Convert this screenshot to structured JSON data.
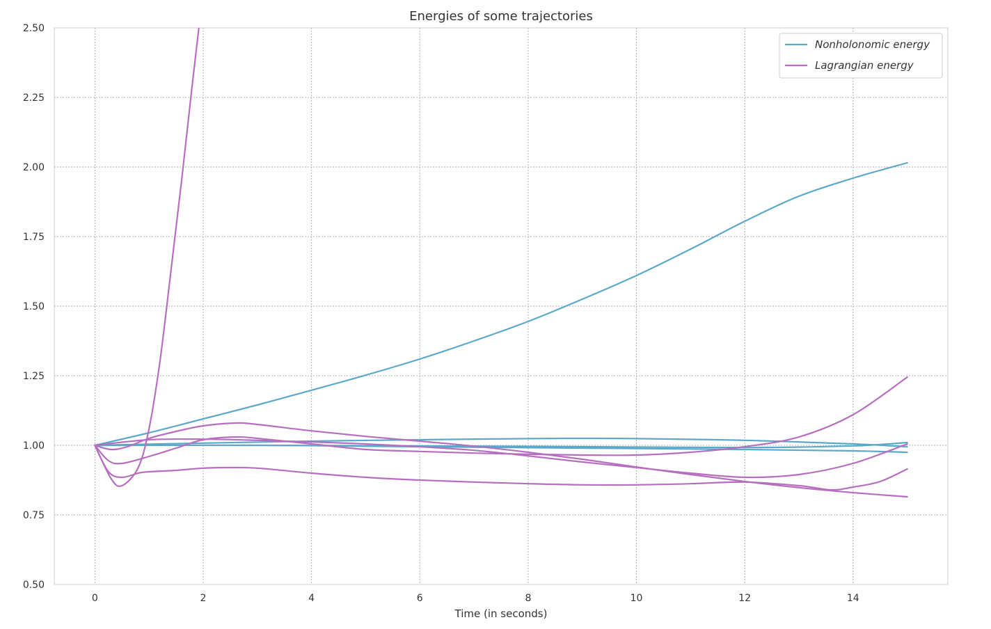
{
  "chart_data": {
    "type": "line",
    "title": "Energies of some trajectories",
    "xlabel": "Time (in seconds)",
    "ylabel": "",
    "xlim": [
      -0.75,
      15.75
    ],
    "ylim": [
      0.5,
      2.5
    ],
    "x_ticks": [
      0,
      2,
      4,
      6,
      8,
      10,
      12,
      14
    ],
    "x_tick_labels": [
      "0",
      "2",
      "4",
      "6",
      "8",
      "10",
      "12",
      "14"
    ],
    "y_ticks": [
      0.5,
      0.75,
      1.0,
      1.25,
      1.5,
      1.75,
      2.0,
      2.25,
      2.5
    ],
    "y_tick_labels": [
      "0.50",
      "0.75",
      "1.00",
      "1.25",
      "1.50",
      "1.75",
      "2.00",
      "2.25",
      "2.50"
    ],
    "grid": true,
    "legend_position": "top-right",
    "legend": [
      {
        "label": "Nonholonomic energy",
        "color": "#5ba8c8"
      },
      {
        "label": "Lagrangian energy",
        "color": "#b56fbe"
      }
    ],
    "series": [
      {
        "group": "nonholonomic",
        "color": "#5ba8c8",
        "x": [
          0,
          1,
          2,
          3,
          4,
          5,
          6,
          7,
          8,
          9,
          10,
          11,
          12,
          13,
          14,
          15
        ],
        "y": [
          1.0,
          1.045,
          1.095,
          1.145,
          1.198,
          1.252,
          1.31,
          1.375,
          1.445,
          1.525,
          1.61,
          1.705,
          1.805,
          1.895,
          1.96,
          2.015
        ]
      },
      {
        "group": "nonholonomic",
        "color": "#5ba8c8",
        "x": [
          0,
          2,
          4,
          6,
          8,
          9,
          10,
          12,
          14,
          15
        ],
        "y": [
          1.0,
          1.008,
          1.015,
          1.02,
          1.024,
          1.025,
          1.024,
          1.018,
          1.005,
          0.995
        ]
      },
      {
        "group": "nonholonomic",
        "color": "#5ba8c8",
        "x": [
          0,
          3,
          6,
          9,
          12,
          14,
          15
        ],
        "y": [
          1.0,
          1.0,
          0.998,
          0.995,
          0.992,
          0.998,
          1.01
        ]
      },
      {
        "group": "nonholonomic",
        "color": "#5ba8c8",
        "x": [
          0,
          3,
          6,
          9,
          12,
          14,
          15
        ],
        "y": [
          1.0,
          1.0,
          0.995,
          0.99,
          0.985,
          0.98,
          0.975
        ]
      },
      {
        "group": "lagrangian",
        "color": "#b56fbe",
        "x": [
          0,
          0.3,
          0.5,
          0.8,
          1.0,
          1.2,
          1.4,
          1.6,
          1.8,
          1.92
        ],
        "y": [
          1.0,
          0.88,
          0.855,
          0.92,
          1.06,
          1.3,
          1.62,
          1.95,
          2.3,
          2.5
        ]
      },
      {
        "group": "lagrangian",
        "color": "#b56fbe",
        "x": [
          0,
          0.25,
          0.5,
          0.8,
          1.0,
          1.5,
          2.0,
          2.5,
          3.0,
          4.0,
          5.0,
          6.0,
          7.0,
          8.0,
          9.0,
          10.0,
          11.0,
          12.0,
          13.0,
          13.6,
          14.0,
          14.5,
          15.0
        ],
        "y": [
          1.0,
          0.905,
          0.885,
          0.9,
          0.905,
          0.91,
          0.918,
          0.92,
          0.918,
          0.9,
          0.885,
          0.875,
          0.868,
          0.862,
          0.858,
          0.858,
          0.862,
          0.868,
          0.855,
          0.84,
          0.85,
          0.87,
          0.915
        ]
      },
      {
        "group": "lagrangian",
        "color": "#b56fbe",
        "x": [
          0,
          0.25,
          0.5,
          1.0,
          1.5,
          2.0,
          2.6,
          3.0,
          4.0,
          5.0,
          6.0,
          7.0,
          8.0,
          9.0,
          10.0,
          11.0,
          12.0,
          13.0,
          14.0,
          15.0
        ],
        "y": [
          1.0,
          0.945,
          0.935,
          0.96,
          0.99,
          1.02,
          1.03,
          1.025,
          1.005,
          0.985,
          0.978,
          0.972,
          0.968,
          0.965,
          0.965,
          0.975,
          0.995,
          1.03,
          1.11,
          1.245
        ]
      },
      {
        "group": "lagrangian",
        "color": "#b56fbe",
        "x": [
          0,
          0.3,
          0.6,
          1.0,
          1.5,
          2.0,
          2.6,
          3.0,
          4.0,
          5.0,
          6.0,
          7.0,
          8.0,
          9.0,
          10.0,
          11.0,
          12.0,
          13.0,
          14.0,
          15.0
        ],
        "y": [
          1.0,
          0.985,
          0.995,
          1.025,
          1.05,
          1.07,
          1.08,
          1.075,
          1.052,
          1.032,
          1.015,
          0.997,
          0.975,
          0.95,
          0.922,
          0.895,
          0.87,
          0.848,
          0.83,
          0.815
        ]
      },
      {
        "group": "lagrangian",
        "color": "#b56fbe",
        "x": [
          0,
          1.0,
          2.0,
          3.0,
          4.0,
          5.0,
          6.0,
          7.0,
          8.0,
          9.0,
          10.0,
          11.0,
          12.0,
          13.0,
          14.0,
          15.0
        ],
        "y": [
          1.0,
          1.02,
          1.022,
          1.018,
          1.012,
          1.005,
          0.995,
          0.982,
          0.962,
          0.94,
          0.92,
          0.9,
          0.885,
          0.895,
          0.935,
          1.005
        ]
      }
    ]
  }
}
